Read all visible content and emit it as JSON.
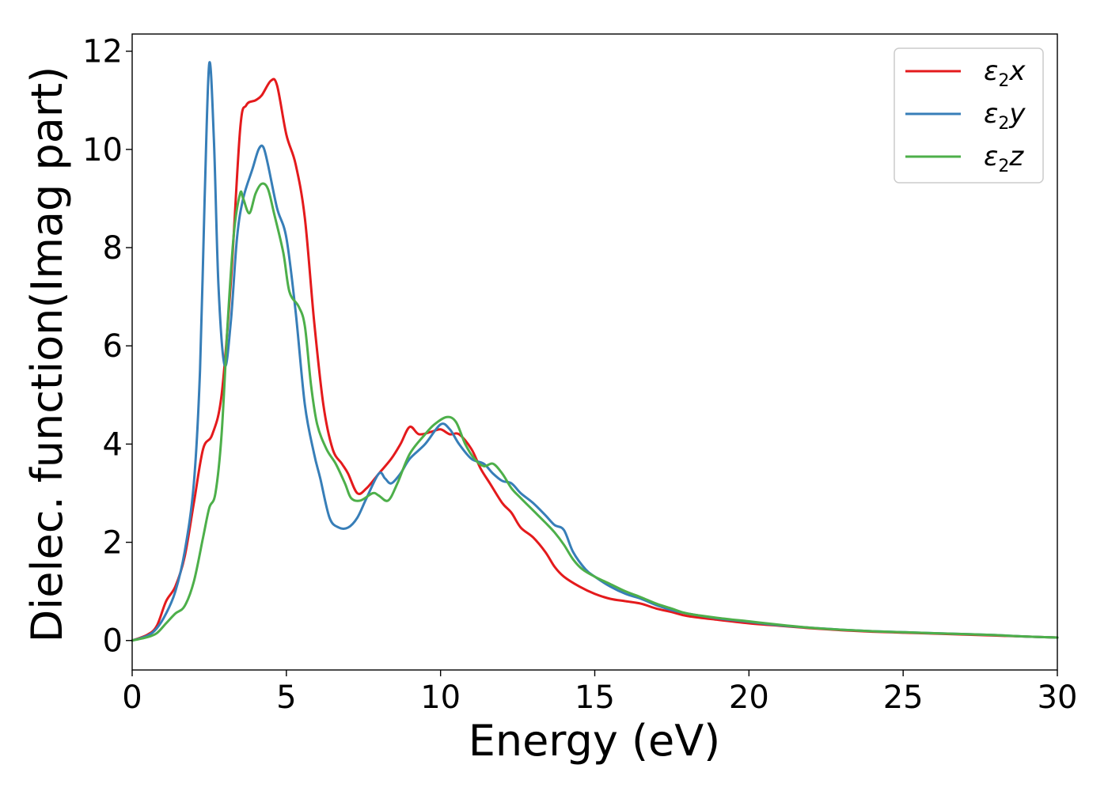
{
  "chart_data": {
    "type": "line",
    "xlabel": "Energy (eV)",
    "ylabel": "Dielec. function(Imag part)",
    "xlim": [
      0,
      30
    ],
    "ylim": [
      -0.6,
      12.35
    ],
    "xticks": [
      0,
      5,
      10,
      15,
      20,
      25,
      30
    ],
    "yticks": [
      0,
      2,
      4,
      6,
      8,
      10,
      12
    ],
    "x_tick_labels": [
      "0",
      "5",
      "10",
      "15",
      "20",
      "25",
      "30"
    ],
    "y_tick_labels": [
      "0",
      "2",
      "4",
      "6",
      "8",
      "10",
      "12"
    ],
    "grid": false,
    "legend_position": "top-right",
    "series": [
      {
        "name": "ε2x",
        "legend": {
          "base": "ε",
          "sub": "2",
          "axis": "x"
        },
        "color": "#e41a1c",
        "points": [
          [
            0,
            0
          ],
          [
            0.5,
            0.12
          ],
          [
            0.8,
            0.3
          ],
          [
            1.1,
            0.8
          ],
          [
            1.4,
            1.1
          ],
          [
            1.7,
            1.7
          ],
          [
            2.0,
            2.8
          ],
          [
            2.3,
            3.9
          ],
          [
            2.6,
            4.2
          ],
          [
            2.9,
            5.0
          ],
          [
            3.2,
            7.3
          ],
          [
            3.5,
            10.4
          ],
          [
            3.7,
            10.9
          ],
          [
            4.0,
            11.0
          ],
          [
            4.2,
            11.1
          ],
          [
            4.5,
            11.4
          ],
          [
            4.7,
            11.3
          ],
          [
            5.0,
            10.3
          ],
          [
            5.3,
            9.7
          ],
          [
            5.6,
            8.6
          ],
          [
            5.9,
            6.5
          ],
          [
            6.2,
            4.8
          ],
          [
            6.5,
            3.9
          ],
          [
            6.8,
            3.6
          ],
          [
            7.0,
            3.4
          ],
          [
            7.3,
            3.0
          ],
          [
            7.6,
            3.1
          ],
          [
            8.0,
            3.4
          ],
          [
            8.4,
            3.7
          ],
          [
            8.7,
            4.0
          ],
          [
            9.0,
            4.35
          ],
          [
            9.3,
            4.2
          ],
          [
            9.7,
            4.25
          ],
          [
            10.0,
            4.3
          ],
          [
            10.3,
            4.2
          ],
          [
            10.6,
            4.2
          ],
          [
            11.0,
            3.9
          ],
          [
            11.3,
            3.5
          ],
          [
            11.6,
            3.2
          ],
          [
            12.0,
            2.8
          ],
          [
            12.3,
            2.6
          ],
          [
            12.6,
            2.3
          ],
          [
            13.0,
            2.1
          ],
          [
            13.4,
            1.8
          ],
          [
            13.7,
            1.5
          ],
          [
            14.0,
            1.3
          ],
          [
            14.5,
            1.1
          ],
          [
            15.0,
            0.95
          ],
          [
            15.5,
            0.85
          ],
          [
            16.0,
            0.8
          ],
          [
            16.5,
            0.75
          ],
          [
            17.0,
            0.65
          ],
          [
            17.5,
            0.58
          ],
          [
            18.0,
            0.5
          ],
          [
            19.0,
            0.42
          ],
          [
            20.0,
            0.35
          ],
          [
            21.0,
            0.3
          ],
          [
            22.0,
            0.25
          ],
          [
            23.0,
            0.21
          ],
          [
            24.0,
            0.18
          ],
          [
            25.0,
            0.16
          ],
          [
            26.0,
            0.14
          ],
          [
            27.0,
            0.12
          ],
          [
            28.0,
            0.1
          ],
          [
            29.0,
            0.08
          ],
          [
            30.0,
            0.06
          ]
        ]
      },
      {
        "name": "ε2y",
        "legend": {
          "base": "ε",
          "sub": "2",
          "axis": "y"
        },
        "color": "#377eb8",
        "points": [
          [
            0,
            0
          ],
          [
            0.5,
            0.1
          ],
          [
            0.8,
            0.25
          ],
          [
            1.1,
            0.55
          ],
          [
            1.4,
            1.0
          ],
          [
            1.7,
            1.8
          ],
          [
            2.0,
            3.2
          ],
          [
            2.2,
            5.5
          ],
          [
            2.35,
            9.0
          ],
          [
            2.5,
            11.75
          ],
          [
            2.65,
            10.2
          ],
          [
            2.8,
            7.2
          ],
          [
            3.0,
            5.6
          ],
          [
            3.2,
            6.5
          ],
          [
            3.4,
            8.2
          ],
          [
            3.6,
            9.0
          ],
          [
            3.9,
            9.6
          ],
          [
            4.1,
            10.0
          ],
          [
            4.25,
            10.05
          ],
          [
            4.4,
            9.7
          ],
          [
            4.7,
            8.8
          ],
          [
            5.0,
            8.2
          ],
          [
            5.3,
            6.7
          ],
          [
            5.6,
            4.8
          ],
          [
            5.9,
            3.8
          ],
          [
            6.1,
            3.3
          ],
          [
            6.4,
            2.5
          ],
          [
            6.7,
            2.3
          ],
          [
            7.0,
            2.3
          ],
          [
            7.3,
            2.5
          ],
          [
            7.6,
            2.9
          ],
          [
            8.0,
            3.4
          ],
          [
            8.2,
            3.3
          ],
          [
            8.4,
            3.2
          ],
          [
            8.7,
            3.4
          ],
          [
            9.0,
            3.7
          ],
          [
            9.5,
            4.0
          ],
          [
            10.0,
            4.4
          ],
          [
            10.3,
            4.3
          ],
          [
            10.6,
            4.0
          ],
          [
            11.0,
            3.7
          ],
          [
            11.4,
            3.6
          ],
          [
            11.7,
            3.4
          ],
          [
            12.0,
            3.25
          ],
          [
            12.3,
            3.2
          ],
          [
            12.6,
            3.0
          ],
          [
            13.0,
            2.8
          ],
          [
            13.4,
            2.55
          ],
          [
            13.7,
            2.35
          ],
          [
            14.0,
            2.25
          ],
          [
            14.3,
            1.8
          ],
          [
            14.7,
            1.45
          ],
          [
            15.0,
            1.3
          ],
          [
            15.5,
            1.1
          ],
          [
            16.0,
            0.95
          ],
          [
            16.5,
            0.85
          ],
          [
            17.0,
            0.72
          ],
          [
            17.5,
            0.62
          ],
          [
            18.0,
            0.55
          ],
          [
            19.0,
            0.45
          ],
          [
            20.0,
            0.38
          ],
          [
            21.0,
            0.31
          ],
          [
            22.0,
            0.26
          ],
          [
            23.0,
            0.22
          ],
          [
            24.0,
            0.19
          ],
          [
            25.0,
            0.17
          ],
          [
            26.0,
            0.15
          ],
          [
            27.0,
            0.13
          ],
          [
            28.0,
            0.11
          ],
          [
            29.0,
            0.08
          ],
          [
            30.0,
            0.06
          ]
        ]
      },
      {
        "name": "ε2z",
        "legend": {
          "base": "ε",
          "sub": "2",
          "axis": "z"
        },
        "color": "#4daf4a",
        "points": [
          [
            0,
            0
          ],
          [
            0.5,
            0.07
          ],
          [
            0.8,
            0.15
          ],
          [
            1.1,
            0.35
          ],
          [
            1.4,
            0.55
          ],
          [
            1.7,
            0.7
          ],
          [
            2.0,
            1.2
          ],
          [
            2.3,
            2.1
          ],
          [
            2.5,
            2.7
          ],
          [
            2.7,
            3.0
          ],
          [
            2.9,
            4.2
          ],
          [
            3.1,
            6.5
          ],
          [
            3.3,
            8.3
          ],
          [
            3.5,
            9.1
          ],
          [
            3.6,
            9.0
          ],
          [
            3.8,
            8.7
          ],
          [
            4.0,
            9.1
          ],
          [
            4.2,
            9.3
          ],
          [
            4.4,
            9.2
          ],
          [
            4.6,
            8.7
          ],
          [
            4.9,
            7.9
          ],
          [
            5.1,
            7.1
          ],
          [
            5.4,
            6.8
          ],
          [
            5.6,
            6.4
          ],
          [
            5.8,
            5.2
          ],
          [
            6.0,
            4.4
          ],
          [
            6.3,
            3.9
          ],
          [
            6.6,
            3.6
          ],
          [
            6.9,
            3.2
          ],
          [
            7.1,
            2.9
          ],
          [
            7.4,
            2.85
          ],
          [
            7.8,
            3.0
          ],
          [
            8.0,
            2.95
          ],
          [
            8.3,
            2.85
          ],
          [
            8.6,
            3.2
          ],
          [
            9.0,
            3.8
          ],
          [
            9.5,
            4.2
          ],
          [
            9.8,
            4.4
          ],
          [
            10.2,
            4.55
          ],
          [
            10.5,
            4.45
          ],
          [
            10.8,
            4.0
          ],
          [
            11.1,
            3.7
          ],
          [
            11.4,
            3.55
          ],
          [
            11.7,
            3.6
          ],
          [
            12.0,
            3.4
          ],
          [
            12.3,
            3.1
          ],
          [
            12.6,
            2.9
          ],
          [
            13.0,
            2.65
          ],
          [
            13.4,
            2.4
          ],
          [
            13.7,
            2.2
          ],
          [
            14.0,
            1.95
          ],
          [
            14.3,
            1.65
          ],
          [
            14.6,
            1.45
          ],
          [
            15.0,
            1.3
          ],
          [
            15.5,
            1.15
          ],
          [
            16.0,
            1.0
          ],
          [
            16.5,
            0.88
          ],
          [
            17.0,
            0.75
          ],
          [
            17.5,
            0.65
          ],
          [
            18.0,
            0.55
          ],
          [
            19.0,
            0.46
          ],
          [
            20.0,
            0.39
          ],
          [
            21.0,
            0.32
          ],
          [
            22.0,
            0.26
          ],
          [
            23.0,
            0.22
          ],
          [
            24.0,
            0.19
          ],
          [
            25.0,
            0.17
          ],
          [
            26.0,
            0.15
          ],
          [
            27.0,
            0.13
          ],
          [
            28.0,
            0.11
          ],
          [
            29.0,
            0.08
          ],
          [
            30.0,
            0.06
          ]
        ]
      }
    ]
  }
}
